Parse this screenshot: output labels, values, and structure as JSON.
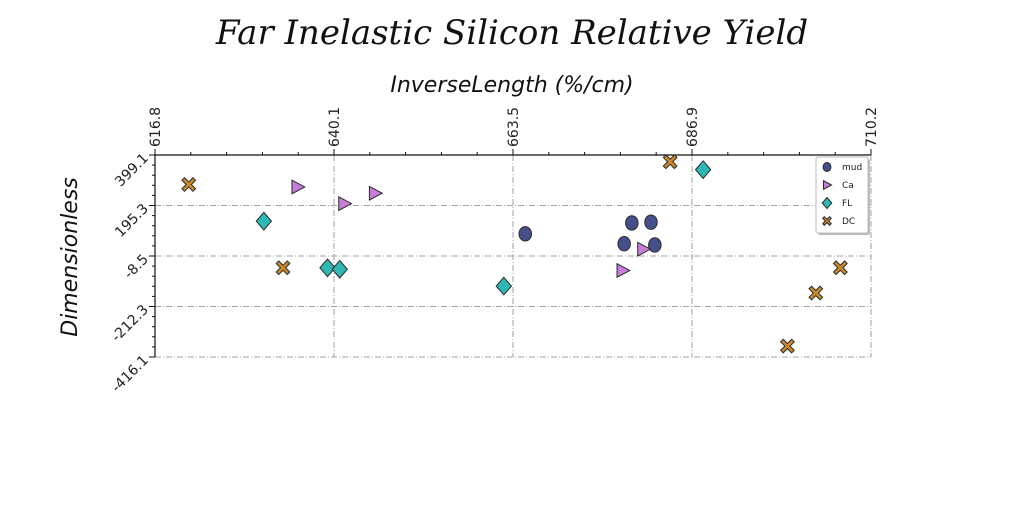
{
  "chart_data": {
    "type": "scatter",
    "title": "Far Inelastic Silicon Relative Yield",
    "xlabel": "InverseLength (%/cm)",
    "ylabel": "Dimensionless",
    "xlim": [
      616.8,
      710.2
    ],
    "ylim": [
      -416.1,
      399.1
    ],
    "xticks": [
      "616.8",
      "640.1",
      "663.5",
      "686.9",
      "710.2"
    ],
    "yticks": [
      "399.1",
      "195.3",
      "-8.5",
      "-212.3",
      "-416.1"
    ],
    "x_axis_position": "top",
    "grid": true,
    "legend_position": "top-right",
    "series": [
      {
        "name": "mud",
        "marker": "circle",
        "color": "#45508a",
        "points": [
          [
            665.1,
            81.0
          ],
          [
            679.0,
            125.0
          ],
          [
            681.5,
            128.0
          ],
          [
            678.0,
            41.0
          ],
          [
            682.0,
            36.0
          ]
        ]
      },
      {
        "name": "Ca",
        "marker": "triangle-right",
        "color": "#c77ed8",
        "points": [
          [
            635.4,
            270.0
          ],
          [
            641.5,
            203.0
          ],
          [
            645.5,
            245.0
          ],
          [
            677.8,
            -67.0
          ],
          [
            680.5,
            19.0
          ]
        ]
      },
      {
        "name": "FL",
        "marker": "diamond",
        "color": "#2db8b4",
        "points": [
          [
            631.0,
            132.0
          ],
          [
            639.3,
            -56.0
          ],
          [
            640.9,
            -62.0
          ],
          [
            662.3,
            -130.0
          ],
          [
            688.3,
            340.0
          ]
        ]
      },
      {
        "name": "DC",
        "marker": "x",
        "color": "#c98a2b",
        "points": [
          [
            621.2,
            280.0
          ],
          [
            633.5,
            -56.0
          ],
          [
            684.0,
            372.0
          ],
          [
            699.3,
            -372.0
          ],
          [
            703.0,
            -158.0
          ],
          [
            706.2,
            -56.0
          ]
        ]
      }
    ]
  }
}
